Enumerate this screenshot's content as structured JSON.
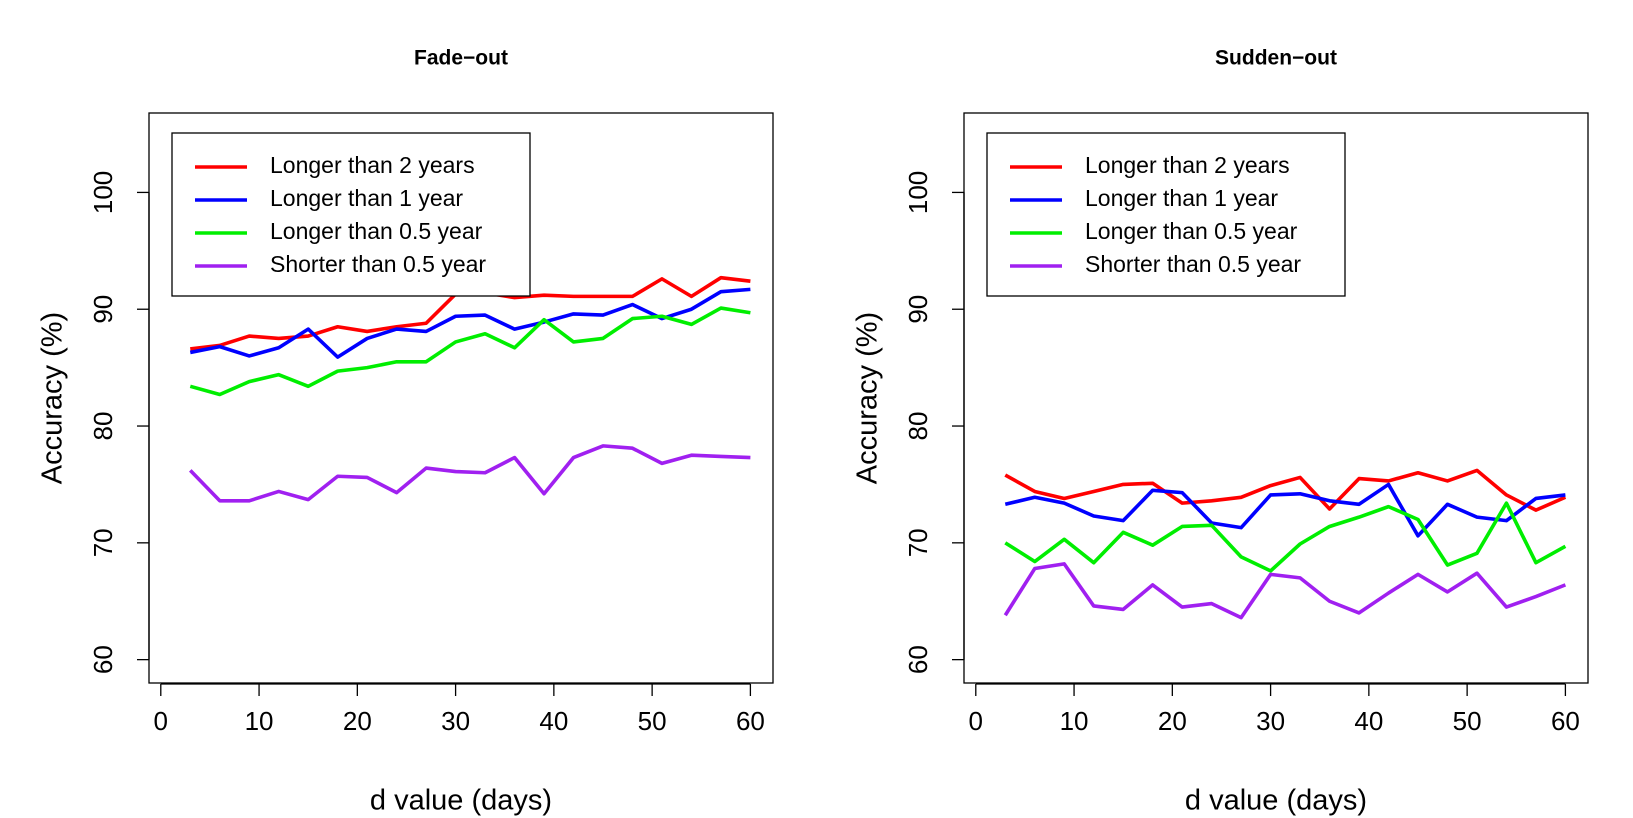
{
  "chart_data": [
    {
      "type": "line",
      "title": "Fade−out",
      "x_label": "d value (days)",
      "y_label": "Accuracy (%)",
      "x": [
        3,
        6,
        9,
        12,
        15,
        18,
        21,
        24,
        27,
        30,
        33,
        36,
        39,
        42,
        45,
        48,
        51,
        54,
        57,
        60
      ],
      "series": [
        {
          "name": "Longer than 2 years",
          "color": "#ff0000",
          "values": [
            86.6,
            86.9,
            87.7,
            87.5,
            87.7,
            88.5,
            88.1,
            88.5,
            88.8,
            91.3,
            91.4,
            91.0,
            91.2,
            91.1,
            91.1,
            91.1,
            92.6,
            91.1,
            92.7,
            92.4
          ]
        },
        {
          "name": "Longer than 1 year",
          "color": "#0000ff",
          "values": [
            86.3,
            86.8,
            86.0,
            86.7,
            88.3,
            85.9,
            87.5,
            88.3,
            88.1,
            89.4,
            89.5,
            88.3,
            88.9,
            89.6,
            89.5,
            90.4,
            89.2,
            90.0,
            91.5,
            91.7
          ]
        },
        {
          "name": "Longer than 0.5 year",
          "color": "#00ee00",
          "values": [
            83.4,
            82.7,
            83.8,
            84.4,
            83.4,
            84.7,
            85.0,
            85.5,
            85.5,
            87.2,
            87.9,
            86.7,
            89.1,
            87.2,
            87.5,
            89.2,
            89.4,
            88.7,
            90.1,
            89.7
          ]
        },
        {
          "name": "Shorter than 0.5 year",
          "color": "#a020f0",
          "values": [
            76.2,
            73.6,
            73.6,
            74.4,
            73.7,
            75.7,
            75.6,
            74.3,
            76.4,
            76.1,
            76.0,
            77.3,
            74.2,
            77.3,
            78.3,
            78.1,
            76.8,
            77.5,
            77.4,
            77.3
          ]
        }
      ],
      "xlim": [
        -1.2,
        62.3
      ],
      "ylim": [
        58.0,
        106.8
      ],
      "xticks": [
        0,
        10,
        20,
        30,
        40,
        50,
        60
      ],
      "yticks": [
        60,
        70,
        80,
        90,
        100
      ],
      "legend": "topleft"
    },
    {
      "type": "line",
      "title": "Sudden−out",
      "x_label": "d value (days)",
      "y_label": "Accuracy (%)",
      "x": [
        3,
        6,
        9,
        12,
        15,
        18,
        21,
        24,
        27,
        30,
        33,
        36,
        39,
        42,
        45,
        48,
        51,
        54,
        57,
        60
      ],
      "series": [
        {
          "name": "Longer than 2 years",
          "color": "#ff0000",
          "values": [
            75.8,
            74.4,
            73.8,
            74.4,
            75.0,
            75.1,
            73.4,
            73.6,
            73.9,
            74.9,
            75.6,
            72.9,
            75.5,
            75.3,
            76.0,
            75.3,
            76.2,
            74.1,
            72.8,
            73.9
          ]
        },
        {
          "name": "Longer than 1 year",
          "color": "#0000ff",
          "values": [
            73.3,
            73.9,
            73.4,
            72.3,
            71.9,
            74.5,
            74.3,
            71.7,
            71.3,
            74.1,
            74.2,
            73.6,
            73.3,
            75.0,
            70.6,
            73.3,
            72.2,
            71.9,
            73.8,
            74.1
          ]
        },
        {
          "name": "Longer than 0.5 year",
          "color": "#00ee00",
          "values": [
            70.0,
            68.4,
            70.3,
            68.3,
            70.9,
            69.8,
            71.4,
            71.5,
            68.8,
            67.6,
            69.9,
            71.4,
            72.2,
            73.1,
            72.0,
            68.1,
            69.1,
            73.4,
            68.3,
            69.7
          ]
        },
        {
          "name": "Shorter than 0.5 year",
          "color": "#a020f0",
          "values": [
            63.8,
            67.8,
            68.2,
            64.6,
            64.3,
            66.4,
            64.5,
            64.8,
            63.6,
            67.3,
            67.0,
            65.0,
            64.0,
            65.7,
            67.3,
            65.8,
            67.4,
            64.5,
            65.4,
            66.4
          ]
        }
      ],
      "xlim": [
        -1.2,
        62.3
      ],
      "ylim": [
        58.0,
        106.8
      ],
      "xticks": [
        0,
        10,
        20,
        30,
        40,
        50,
        60
      ],
      "yticks": [
        60,
        70,
        80,
        90,
        100
      ],
      "legend": "topleft"
    }
  ]
}
